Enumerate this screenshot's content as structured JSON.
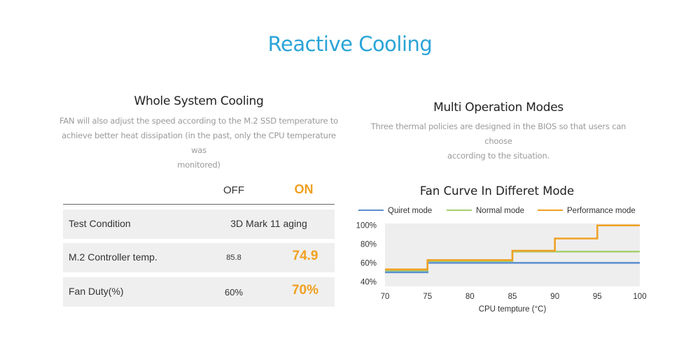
{
  "header": {
    "title": "Reactive Cooling"
  },
  "left": {
    "title": "Whole System Cooling",
    "desc_lines": [
      "FAN will also adjust the speed according to the M.2 SSD temperature to",
      "achieve better heat dissipation (in the past, only the CPU temperature was",
      "monitored)"
    ]
  },
  "right": {
    "title": "Multi Operation Modes",
    "desc_lines": [
      "Three thermal policies are designed in the BIOS so that users can choose",
      "according to the situation."
    ]
  },
  "table": {
    "col_off": "OFF",
    "col_on": "ON",
    "rows": [
      {
        "label": "Test Condition",
        "merged": "3D Mark 11 aging"
      },
      {
        "label": "M.2 Controller temp.",
        "off": "85.8",
        "on": "74.9"
      },
      {
        "label": "Fan Duty(%)",
        "off": "60%",
        "on": "70%"
      }
    ]
  },
  "colors": {
    "accent": "#2aa4d8",
    "on": "#f0a020",
    "row_bg": "#efefef"
  },
  "chart_data": {
    "type": "line",
    "title": "Fan Curve In Differet Mode",
    "xlabel": "CPU tempture (°C)",
    "ylabel": "",
    "x_ticks": [
      "70",
      "75",
      "80",
      "85",
      "90",
      "95",
      "100"
    ],
    "y_ticks": [
      "40%",
      "60%",
      "80%",
      "100%"
    ],
    "xlim": [
      70,
      100
    ],
    "ylim": [
      35,
      102
    ],
    "step": true,
    "grid": false,
    "legend_position": "top",
    "series": [
      {
        "name": "Quiret mode",
        "color": "#5b8fd0",
        "x": [
          70,
          75,
          75,
          100
        ],
        "y": [
          50,
          50,
          60,
          60
        ]
      },
      {
        "name": "Normal mode",
        "color": "#a5cf6f",
        "x": [
          70,
          75,
          75,
          85,
          85,
          100
        ],
        "y": [
          52,
          52,
          62,
          62,
          72,
          72
        ]
      },
      {
        "name": "Performance mode",
        "color": "#f0a020",
        "x": [
          70,
          75,
          75,
          85,
          85,
          90,
          90,
          95,
          95,
          100
        ],
        "y": [
          53,
          53,
          63,
          63,
          73,
          73,
          86,
          86,
          100,
          100
        ]
      }
    ]
  }
}
